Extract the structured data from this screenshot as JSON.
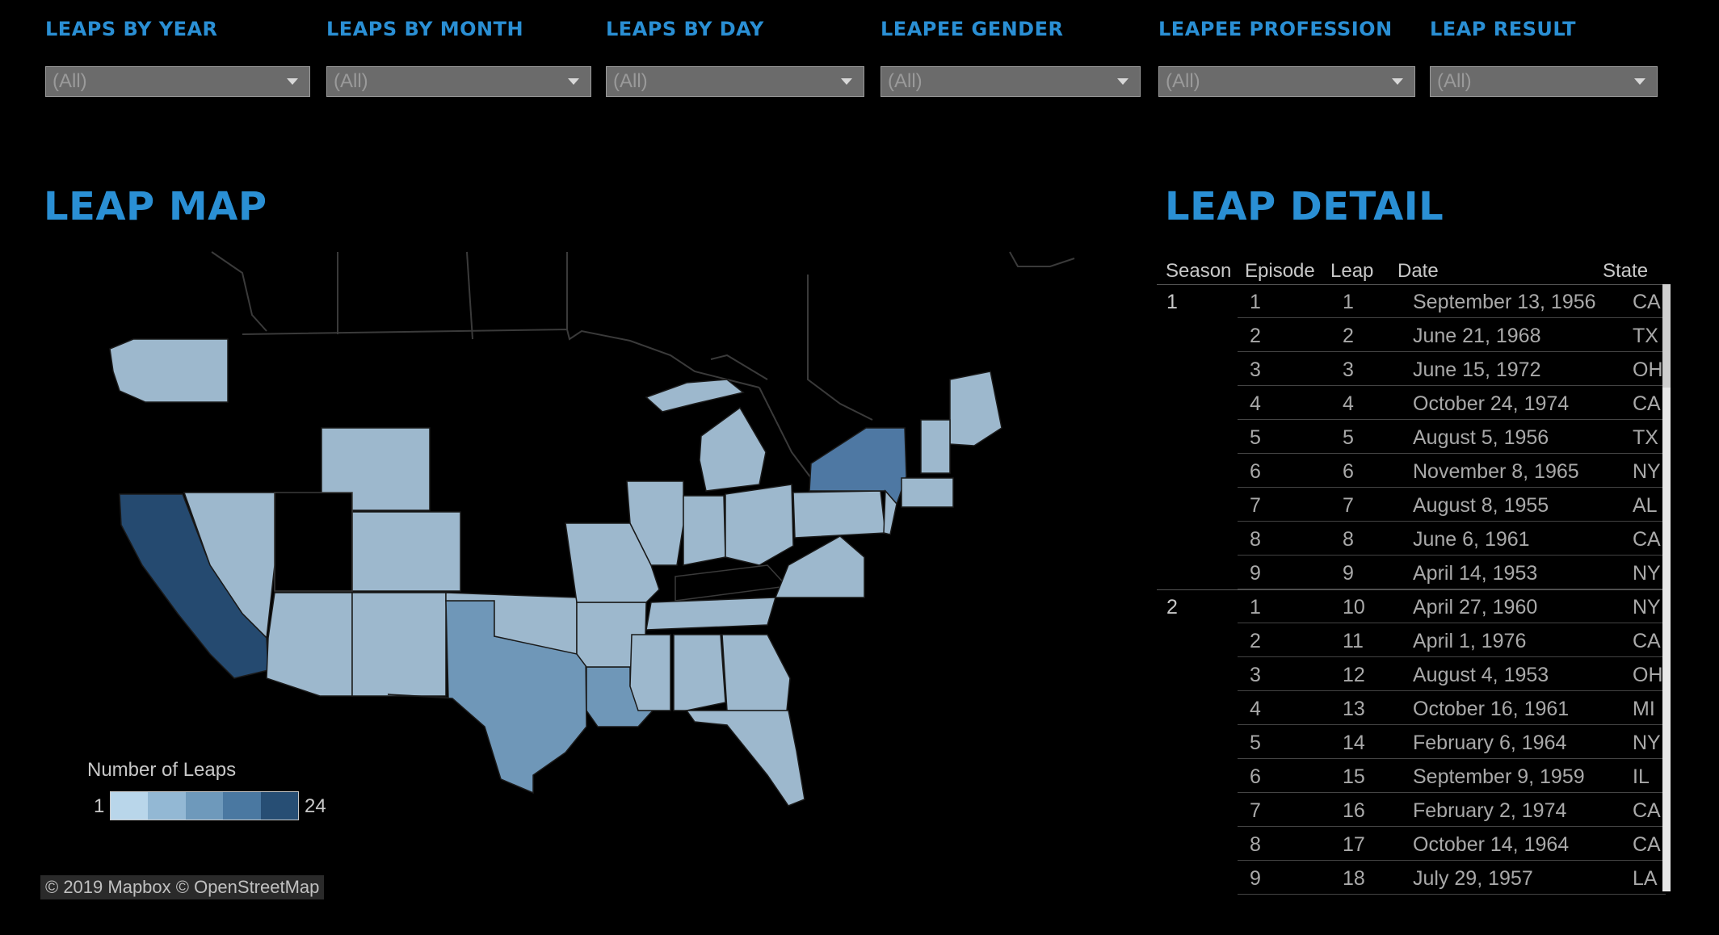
{
  "filters": [
    {
      "label": "LEAPS BY YEAR",
      "value": "(All)"
    },
    {
      "label": "LEAPS BY MONTH",
      "value": "(All)"
    },
    {
      "label": "LEAPS BY DAY",
      "value": "(All)"
    },
    {
      "label": "LEAPEE GENDER",
      "value": "(All)"
    },
    {
      "label": "LEAPEE PROFESSION",
      "value": "(All)"
    },
    {
      "label": "LEAP RESULT",
      "value": "(All)"
    }
  ],
  "map": {
    "title": "LEAP MAP",
    "legend": {
      "title": "Number of Leaps",
      "min": "1",
      "max": "24",
      "steps": [
        "#b9d6ea",
        "#93b8d4",
        "#6e99bb",
        "#4a78a1",
        "#274e74"
      ]
    },
    "colors": {
      "light": "#9db8cd",
      "medium": "#6f97b8",
      "blue": "#4e78a3",
      "dark": "#254a70"
    },
    "attribution": "© 2019 Mapbox  © OpenStreetMap"
  },
  "detail": {
    "title": "LEAP DETAIL",
    "columns": [
      "Season",
      "Episode",
      "Leap",
      "Date",
      "State"
    ],
    "seasons": [
      {
        "season": "1",
        "rows": [
          [
            "1",
            "1",
            "September 13, 1956",
            "CA"
          ],
          [
            "2",
            "2",
            "June 21, 1968",
            "TX"
          ],
          [
            "3",
            "3",
            "June 15, 1972",
            "OH"
          ],
          [
            "4",
            "4",
            "October 24, 1974",
            "CA"
          ],
          [
            "5",
            "5",
            "August 5, 1956",
            "TX"
          ],
          [
            "6",
            "6",
            "November 8, 1965",
            "NY"
          ],
          [
            "7",
            "7",
            "August 8, 1955",
            "AL"
          ],
          [
            "8",
            "8",
            "June 6, 1961",
            "CA"
          ],
          [
            "9",
            "9",
            "April 14, 1953",
            "NY"
          ]
        ]
      },
      {
        "season": "2",
        "rows": [
          [
            "1",
            "10",
            "April 27, 1960",
            "NY"
          ],
          [
            "2",
            "11",
            "April 1, 1976",
            "CA"
          ],
          [
            "3",
            "12",
            "August 4, 1953",
            "OH"
          ],
          [
            "4",
            "13",
            "October 16, 1961",
            "MI"
          ],
          [
            "5",
            "14",
            "February 6, 1964",
            "NY"
          ],
          [
            "6",
            "15",
            "September 9, 1959",
            "IL"
          ],
          [
            "7",
            "16",
            "February 2, 1974",
            "CA"
          ],
          [
            "8",
            "17",
            "October 14, 1964",
            "CA"
          ],
          [
            "9",
            "18",
            "July 29, 1957",
            "LA"
          ]
        ]
      }
    ]
  }
}
